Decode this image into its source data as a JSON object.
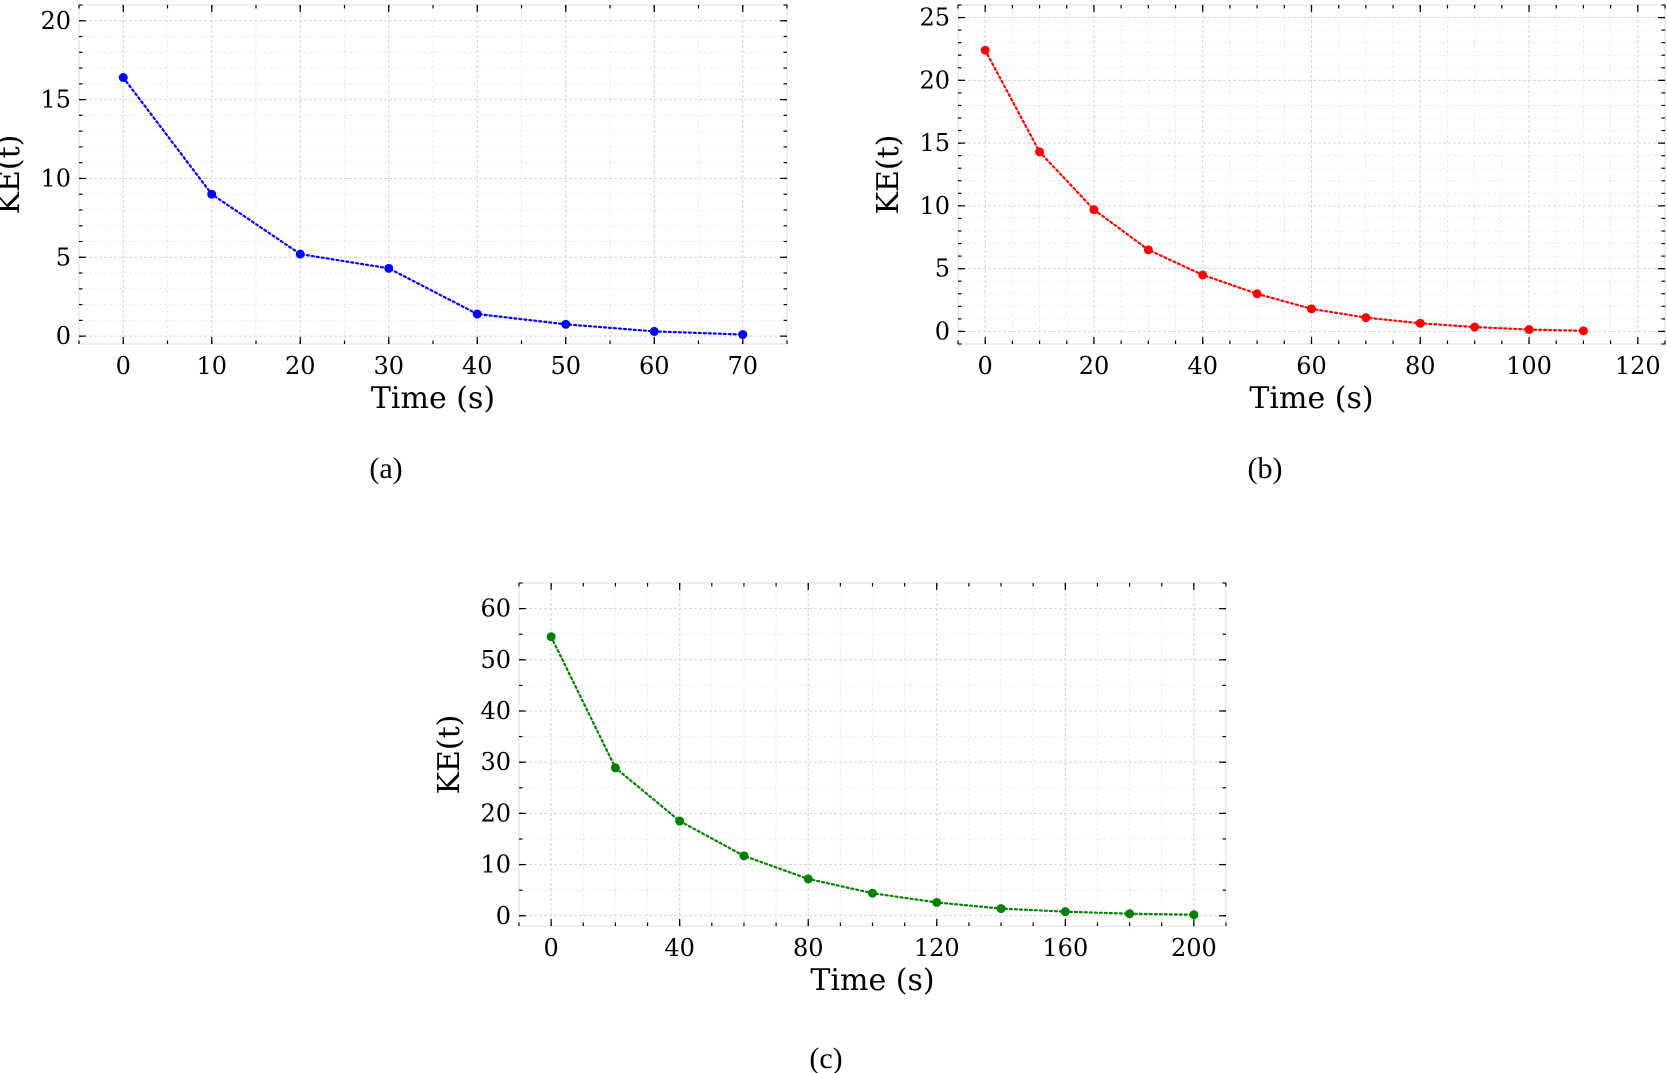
{
  "chart_data": [
    {
      "type": "line",
      "caption": "(a)",
      "xlabel": "Time (s)",
      "ylabel": "KE(t)",
      "xlim": [
        -5,
        75
      ],
      "ylim": [
        -0.5,
        21
      ],
      "xticks": [
        0,
        10,
        20,
        30,
        40,
        50,
        60,
        70
      ],
      "yticks": [
        0,
        5,
        10,
        15,
        20
      ],
      "x_minor_step": 5,
      "y_minor_step": 1,
      "grid": true,
      "line_style": "dotted",
      "color": "#0000ff",
      "series": [
        {
          "x": [
            0,
            10,
            20,
            30,
            40,
            50,
            60,
            70
          ],
          "values": [
            16.4,
            9.0,
            5.2,
            4.3,
            1.4,
            0.75,
            0.3,
            0.1
          ]
        }
      ]
    },
    {
      "type": "line",
      "caption": "(b)",
      "xlabel": "Time (s)",
      "ylabel": "KE(t)",
      "xlim": [
        -5,
        125
      ],
      "ylim": [
        -1,
        26
      ],
      "xticks": [
        0,
        20,
        40,
        60,
        80,
        100,
        120
      ],
      "yticks": [
        0,
        5,
        10,
        15,
        20,
        25
      ],
      "x_minor_step": 5,
      "y_minor_step": 1,
      "grid": true,
      "line_style": "dotted",
      "color": "#ff0000",
      "series": [
        {
          "x": [
            0,
            10,
            20,
            30,
            40,
            50,
            60,
            70,
            80,
            90,
            100,
            110
          ],
          "values": [
            22.4,
            14.3,
            9.7,
            6.5,
            4.5,
            3.0,
            1.8,
            1.1,
            0.65,
            0.35,
            0.15,
            0.05
          ]
        }
      ]
    },
    {
      "type": "line",
      "caption": "(c)",
      "xlabel": "Time (s)",
      "ylabel": "KE(t)",
      "xlim": [
        -10,
        210
      ],
      "ylim": [
        -2,
        65
      ],
      "xticks": [
        0,
        40,
        80,
        120,
        160,
        200
      ],
      "yticks": [
        0,
        10,
        20,
        30,
        40,
        50,
        60
      ],
      "x_minor_step": 10,
      "y_minor_step": 5,
      "grid": true,
      "line_style": "dotted",
      "color": "#008000",
      "series": [
        {
          "x": [
            0,
            20,
            40,
            60,
            80,
            100,
            120,
            140,
            160,
            180,
            200
          ],
          "values": [
            54.5,
            28.9,
            18.5,
            11.7,
            7.2,
            4.4,
            2.6,
            1.4,
            0.8,
            0.4,
            0.2
          ]
        }
      ]
    }
  ]
}
